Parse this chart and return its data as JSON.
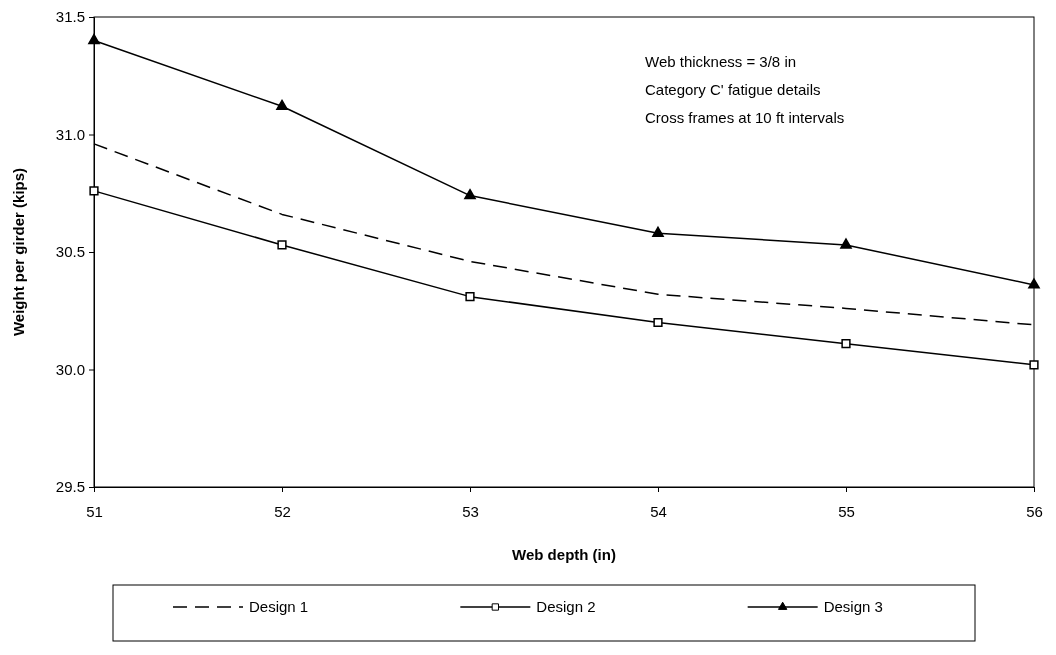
{
  "chart_data": {
    "type": "line",
    "xlabel": "Web depth (in)",
    "ylabel": "Weight per girder (kips)",
    "x": [
      51,
      52,
      53,
      54,
      55,
      56
    ],
    "xlim": [
      51,
      56
    ],
    "xticks": [
      51,
      52,
      53,
      54,
      55,
      56
    ],
    "ylim": [
      29.5,
      31.5
    ],
    "yticks": [
      29.5,
      {
        "value": 30,
        "label": "30.0"
      },
      30.5,
      {
        "value": 31,
        "label": "31.0"
      },
      31.5
    ],
    "grid": false,
    "legend": "bottom",
    "annotations": [
      "Web thickness = 3/8 in",
      "Category C' fatigue details",
      "Cross frames at 10 ft intervals"
    ],
    "series": [
      {
        "name": "Design 1",
        "color": "#000000",
        "line_style": "dashed",
        "marker": "none",
        "values": [
          30.96,
          30.66,
          30.46,
          30.32,
          30.26,
          30.19
        ]
      },
      {
        "name": "Design 2",
        "color": "#000000",
        "line_style": "solid",
        "marker": "square",
        "values": [
          30.76,
          30.53,
          30.31,
          30.2,
          30.11,
          30.02
        ]
      },
      {
        "name": "Design 3",
        "color": "#000000",
        "line_style": "solid",
        "marker": "triangle",
        "values": [
          31.4,
          31.12,
          30.74,
          30.58,
          30.53,
          30.36
        ]
      }
    ]
  }
}
